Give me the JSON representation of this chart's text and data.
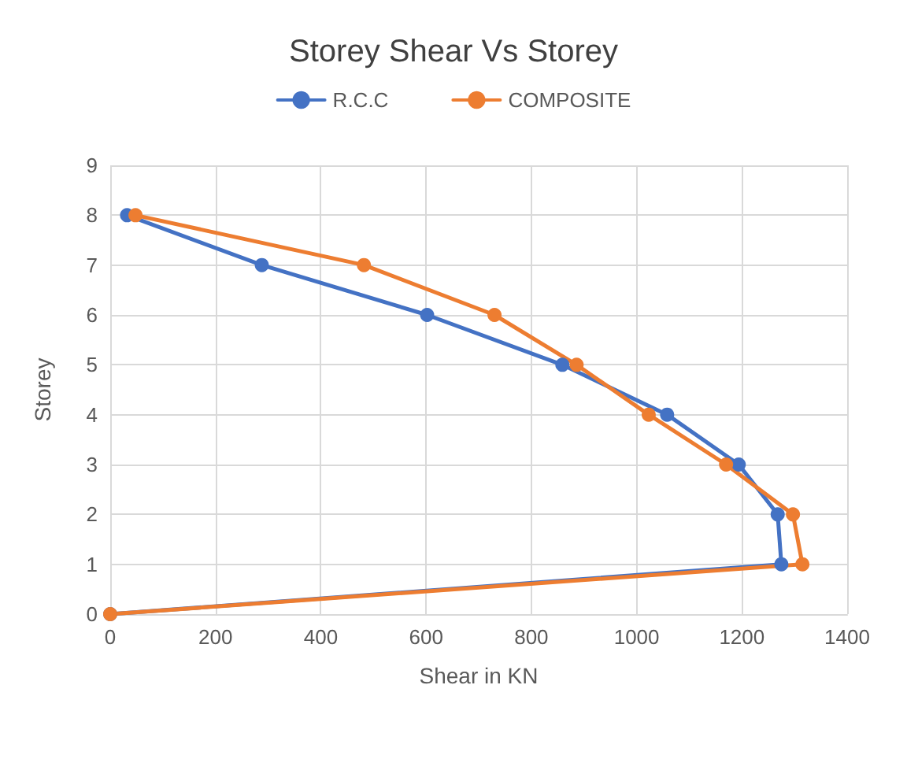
{
  "chart_data": {
    "type": "line",
    "title": "Storey Shear Vs Storey",
    "xlabel": "Shear in KN",
    "ylabel": "Storey",
    "series": [
      {
        "name": "R.C.C",
        "color": "#4472c4",
        "x": [
          0,
          1275,
          1268,
          1194,
          1058,
          859,
          602,
          288,
          32
        ],
        "values": [
          0,
          1,
          2,
          3,
          4,
          5,
          6,
          7,
          8
        ]
      },
      {
        "name": "COMPOSITE",
        "color": "#ed7d31",
        "x": [
          0,
          1315,
          1297,
          1170,
          1023,
          886,
          730,
          482,
          48
        ],
        "values": [
          0,
          1,
          2,
          3,
          4,
          5,
          6,
          7,
          8
        ]
      }
    ],
    "xlim": [
      0,
      1400
    ],
    "xticks": [
      0,
      200,
      400,
      600,
      800,
      1000,
      1200,
      1400
    ],
    "ylim": [
      0,
      9
    ],
    "yticks": [
      0,
      1,
      2,
      3,
      4,
      5,
      6,
      7,
      8,
      9
    ],
    "grid": true,
    "legend": "top",
    "marker": "circle",
    "line_style": "solid"
  }
}
